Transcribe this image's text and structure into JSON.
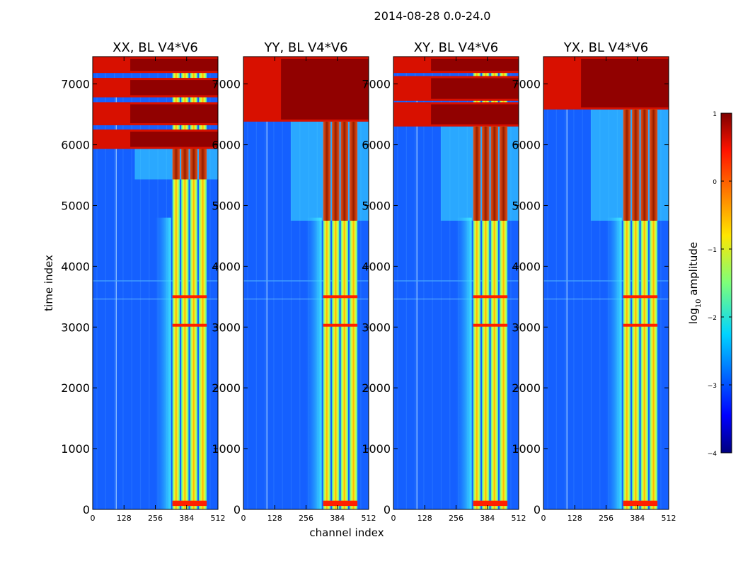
{
  "figure": {
    "suptitle": "2014-08-28 0.0-24.0"
  },
  "chart_data": {
    "type": "heatmap",
    "xlabel": "channel index",
    "ylabel": "time index",
    "xlim": [
      0,
      512
    ],
    "ylim": [
      0,
      7450
    ],
    "xticks": [
      0,
      128,
      256,
      384,
      512
    ],
    "yticks": [
      0,
      1000,
      2000,
      3000,
      4000,
      5000,
      6000,
      7000
    ],
    "panels": [
      {
        "title": "XX, BL V4*V6",
        "hot_bands": [
          [
            5930,
            6250
          ],
          [
            6320,
            6700
          ],
          [
            6780,
            7100
          ],
          [
            7180,
            7450
          ]
        ],
        "partial_band": [
          5430,
          5930
        ],
        "partial_x": 0.56
      },
      {
        "title": "YY, BL V4*V6",
        "hot_bands": [
          [
            6380,
            7450
          ]
        ],
        "partial_band": [
          4750,
          6380
        ],
        "partial_x": 0.63
      },
      {
        "title": "XY, BL V4*V6",
        "hot_bands": [
          [
            6300,
            6700
          ],
          [
            6720,
            7130
          ],
          [
            7180,
            7450
          ]
        ],
        "partial_band": [
          4750,
          6300
        ],
        "partial_x": 0.63
      },
      {
        "title": "YX, BL V4*V6",
        "hot_bands": [
          [
            6580,
            7450
          ]
        ],
        "partial_band": [
          4750,
          6580
        ],
        "partial_x": 0.63
      }
    ],
    "colorbar": {
      "label": "log",
      "label_sub": "10",
      "label_suffix": " amplitude",
      "range": [
        -4,
        1
      ],
      "ticks": [
        "1",
        "0",
        "−1",
        "−2",
        "−3",
        "−4"
      ],
      "colormap": "jet"
    }
  }
}
